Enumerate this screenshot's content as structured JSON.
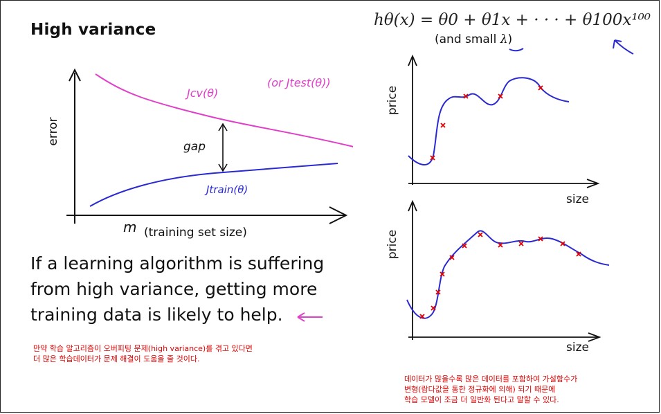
{
  "slide": {
    "title": "High variance",
    "hypothesis": "hθ(x) = θ0 + θ1x + · · · + θ100x¹⁰⁰",
    "hypothesis_note_prefix": "(and small ",
    "hypothesis_note_lambda": "λ",
    "hypothesis_note_suffix": ")",
    "statement": "If a learning algorithm is suffering from high variance, getting more training data is likely to help.",
    "korean_left": [
      "만약 학습 알고리즘이 오버피팅 문제(high variance)를 겪고 있다면",
      "더 많은 학습데이터가 문제 해결이 도움을 줄 것이다."
    ],
    "korean_right": [
      "데이터가 많을수록 많은 데이터를 포함하여 가설함수가",
      "변형(람다값을 통한 정규화에 의해) 되기 때문에",
      "학습 모델이 조금 더 일반화 된다고 말할 수 있다."
    ]
  },
  "learning_curve": {
    "ylabel": "error",
    "xlabel_var": "m",
    "xlabel_text": "(training set size)",
    "cv_label": "Jcv(θ)",
    "test_label": "(or Jtest(θ))",
    "train_label": "Jtrain(θ)",
    "gap_label": "gap",
    "colors": {
      "cv": "#e040c8",
      "train": "#2a2ad0"
    }
  },
  "fit_plots": {
    "ylabel": "price",
    "xlabel": "size",
    "marker_color": "#e00000",
    "curve_color": "#2a2ad0"
  }
}
